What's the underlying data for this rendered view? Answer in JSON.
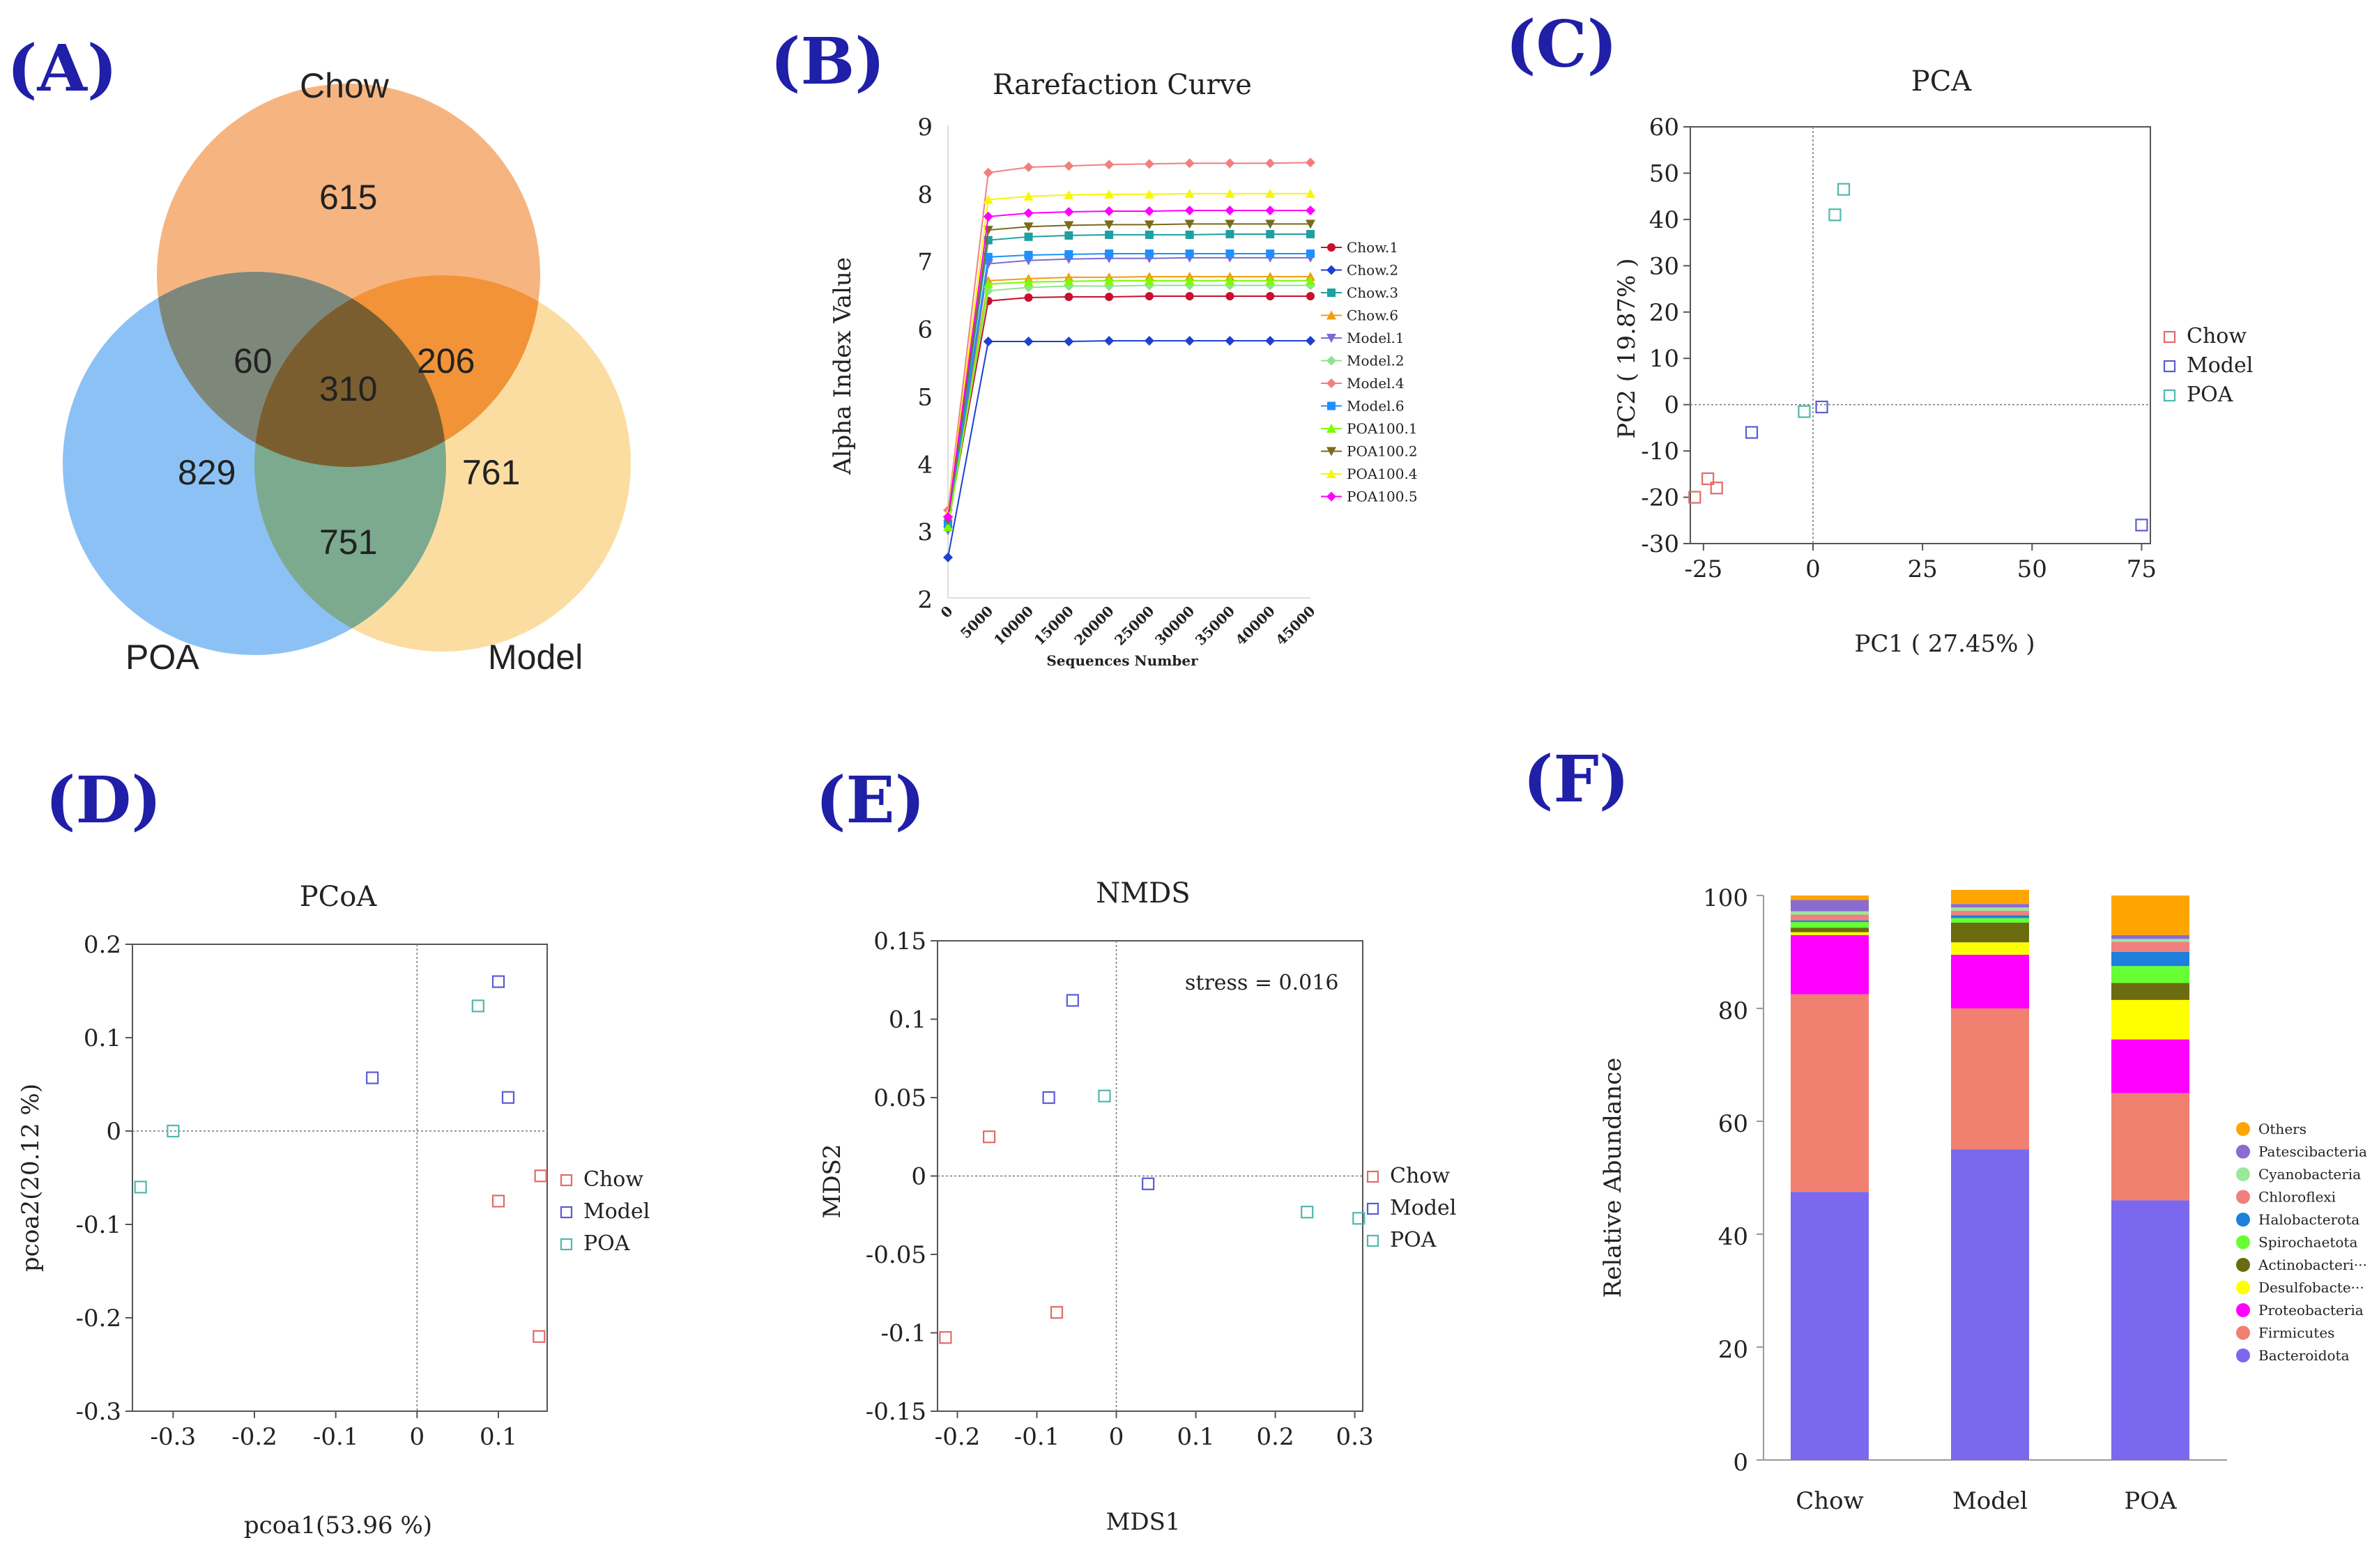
{
  "panels": {
    "A": "(A)",
    "B": "(B)",
    "C": "(C)",
    "D": "(D)",
    "E": "(E)",
    "F": "(F)"
  },
  "colors": {
    "chow": "#e36a6a",
    "model": "#5b5bd6",
    "poa": "#4fb9ad",
    "panel_label": "#1f1fa8"
  },
  "chart_data": [
    {
      "type": "venn",
      "sets": [
        "Chow",
        "POA",
        "Model"
      ],
      "set_colors": [
        "#f5a86a",
        "#6fb1f2",
        "#fbd282"
      ],
      "regions": {
        "chow_only": "615",
        "chow_poa": "60",
        "all": "310",
        "chow_model": "206",
        "poa_only": "829",
        "model_only": "761",
        "poa_model": "751"
      }
    },
    {
      "type": "line",
      "title": "Rarefaction Curve",
      "xlabel": "Sequences Number",
      "ylabel": "Alpha Index Value",
      "xlim": [
        0,
        45000
      ],
      "ylim": [
        2,
        9
      ],
      "xticks": [
        "0",
        "5000",
        "10000",
        "15000",
        "20000",
        "25000",
        "30000",
        "35000",
        "40000",
        "45000"
      ],
      "yticks": [
        "2",
        "3",
        "4",
        "5",
        "6",
        "7",
        "8",
        "9"
      ],
      "x": [
        0,
        5000,
        10000,
        15000,
        20000,
        25000,
        30000,
        35000,
        40000,
        45000
      ],
      "series": [
        {
          "name": "Chow.1",
          "color": "#c8102e",
          "marker": "circle",
          "values": [
            3.1,
            6.4,
            6.45,
            6.46,
            6.46,
            6.47,
            6.47,
            6.47,
            6.47,
            6.47
          ]
        },
        {
          "name": "Chow.2",
          "color": "#1f3fcf",
          "marker": "diamond",
          "values": [
            2.6,
            5.8,
            5.8,
            5.8,
            5.81,
            5.81,
            5.81,
            5.81,
            5.81,
            5.81
          ]
        },
        {
          "name": "Chow.3",
          "color": "#1f9fa0",
          "marker": "square",
          "values": [
            3.1,
            7.3,
            7.35,
            7.37,
            7.38,
            7.38,
            7.38,
            7.39,
            7.39,
            7.39
          ]
        },
        {
          "name": "Chow.6",
          "color": "#f39c12",
          "marker": "triangle",
          "values": [
            3.2,
            6.7,
            6.73,
            6.75,
            6.75,
            6.76,
            6.76,
            6.76,
            6.76,
            6.76
          ]
        },
        {
          "name": "Model.1",
          "color": "#7a6bd4",
          "marker": "triangle-down",
          "values": [
            3.0,
            6.95,
            7.0,
            7.02,
            7.03,
            7.03,
            7.04,
            7.04,
            7.04,
            7.04
          ]
        },
        {
          "name": "Model.2",
          "color": "#90e390",
          "marker": "diamond",
          "values": [
            3.1,
            6.55,
            6.6,
            6.62,
            6.62,
            6.63,
            6.63,
            6.63,
            6.63,
            6.63
          ]
        },
        {
          "name": "Model.4",
          "color": "#f08080",
          "marker": "diamond",
          "values": [
            3.3,
            8.3,
            8.38,
            8.4,
            8.42,
            8.43,
            8.44,
            8.44,
            8.44,
            8.45
          ]
        },
        {
          "name": "Model.6",
          "color": "#1e90ff",
          "marker": "square",
          "values": [
            3.1,
            7.05,
            7.08,
            7.09,
            7.1,
            7.1,
            7.1,
            7.1,
            7.1,
            7.1
          ]
        },
        {
          "name": "POA100.1",
          "color": "#7cfc00",
          "marker": "triangle",
          "values": [
            3.05,
            6.65,
            6.68,
            6.69,
            6.7,
            6.7,
            6.7,
            6.7,
            6.7,
            6.7
          ]
        },
        {
          "name": "POA100.2",
          "color": "#7a6a1a",
          "marker": "triangle-down",
          "values": [
            3.15,
            7.45,
            7.5,
            7.52,
            7.53,
            7.53,
            7.54,
            7.54,
            7.54,
            7.54
          ]
        },
        {
          "name": "POA100.4",
          "color": "#f7f700",
          "marker": "triangle",
          "values": [
            3.25,
            7.9,
            7.95,
            7.97,
            7.98,
            7.98,
            7.99,
            7.99,
            7.99,
            7.99
          ]
        },
        {
          "name": "POA100.5",
          "color": "#ff00ff",
          "marker": "diamond",
          "values": [
            3.2,
            7.65,
            7.7,
            7.72,
            7.73,
            7.73,
            7.74,
            7.74,
            7.74,
            7.74
          ]
        }
      ]
    },
    {
      "type": "scatter",
      "title": "PCA",
      "xlabel": "PC1 ( 27.45% )",
      "ylabel": "PC2 ( 19.87% )",
      "xlim": [
        -28,
        77
      ],
      "ylim": [
        -30,
        60
      ],
      "xticks": [
        "-25",
        "0",
        "25",
        "50",
        "75"
      ],
      "yticks": [
        "-30",
        "-20",
        "-10",
        "0",
        "10",
        "20",
        "30",
        "40",
        "50",
        "60"
      ],
      "legend": [
        "Chow",
        "Model",
        "POA"
      ],
      "series": [
        {
          "name": "Chow",
          "points": [
            [
              -27,
              -20
            ],
            [
              -24,
              -16
            ],
            [
              -22,
              -18
            ]
          ]
        },
        {
          "name": "Model",
          "points": [
            [
              -14,
              -6
            ],
            [
              2,
              -0.5
            ],
            [
              75,
              -26
            ]
          ]
        },
        {
          "name": "POA",
          "points": [
            [
              -2,
              -1.5
            ],
            [
              5,
              41
            ],
            [
              7,
              46.5
            ]
          ]
        }
      ]
    },
    {
      "type": "scatter",
      "title": "PCoA",
      "xlabel": "pcoa1(53.96 %)",
      "ylabel": "pcoa2(20.12 %)",
      "xlim": [
        -0.35,
        0.16
      ],
      "ylim": [
        -0.3,
        0.2
      ],
      "xticks": [
        "-0.3",
        "-0.2",
        "-0.1",
        "0",
        "0.1"
      ],
      "yticks": [
        "-0.3",
        "-0.2",
        "-0.1",
        "0",
        "0.1",
        "0.2"
      ],
      "legend": [
        "Chow",
        "Model",
        "POA"
      ],
      "series": [
        {
          "name": "Chow",
          "points": [
            [
              0.1,
              -0.075
            ],
            [
              0.152,
              -0.048
            ],
            [
              0.15,
              -0.22
            ]
          ]
        },
        {
          "name": "Model",
          "points": [
            [
              -0.055,
              0.057
            ],
            [
              0.1,
              0.16
            ],
            [
              0.112,
              0.036
            ]
          ]
        },
        {
          "name": "POA",
          "points": [
            [
              -0.34,
              -0.06
            ],
            [
              -0.3,
              0.0
            ],
            [
              0.075,
              0.134
            ]
          ]
        }
      ]
    },
    {
      "type": "scatter",
      "title": "NMDS",
      "xlabel": "MDS1",
      "ylabel": "MDS2",
      "annotation": "stress = 0.016",
      "xlim": [
        -0.225,
        0.31
      ],
      "ylim": [
        -0.15,
        0.15
      ],
      "xticks": [
        "-0.2",
        "-0.1",
        "0",
        "0.1",
        "0.2",
        "0.3"
      ],
      "yticks": [
        "-0.15",
        "-0.1",
        "-0.05",
        "0",
        "0.05",
        "0.1",
        "0.15"
      ],
      "legend": [
        "Chow",
        "Model",
        "POA"
      ],
      "series": [
        {
          "name": "Chow",
          "points": [
            [
              -0.16,
              0.025
            ],
            [
              -0.075,
              -0.087
            ],
            [
              -0.215,
              -0.103
            ]
          ]
        },
        {
          "name": "Model",
          "points": [
            [
              -0.055,
              0.112
            ],
            [
              -0.085,
              0.05
            ],
            [
              0.04,
              -0.005
            ]
          ]
        },
        {
          "name": "POA",
          "points": [
            [
              -0.015,
              0.051
            ],
            [
              0.24,
              -0.023
            ],
            [
              0.305,
              -0.027
            ]
          ]
        }
      ]
    },
    {
      "type": "bar",
      "stacked": true,
      "ylabel": "Relative Abundance",
      "ylim": [
        0,
        100
      ],
      "yticks": [
        "0",
        "20",
        "40",
        "60",
        "80",
        "100"
      ],
      "categories": [
        "Chow",
        "Model",
        "POA"
      ],
      "series": [
        {
          "name": "Bacteroidota",
          "color": "#7b68ee",
          "values": [
            47.5,
            55,
            46
          ]
        },
        {
          "name": "Firmicutes",
          "color": "#f08070",
          "values": [
            35,
            25,
            19
          ]
        },
        {
          "name": "Proteobacteria",
          "color": "#ff00ff",
          "values": [
            10.5,
            9.5,
            9.5
          ]
        },
        {
          "name": "Desulfobacte···",
          "color": "#ffff00",
          "values": [
            0.5,
            2.2,
            7
          ]
        },
        {
          "name": "Actinobacteri···",
          "color": "#6b6b10",
          "values": [
            0.8,
            3.5,
            3
          ]
        },
        {
          "name": "Spirochaetota",
          "color": "#66ff33",
          "values": [
            1,
            0.8,
            3
          ]
        },
        {
          "name": "Halobacterota",
          "color": "#1e7fdd",
          "values": [
            0.3,
            0.5,
            2.5
          ]
        },
        {
          "name": "Chloroflexi",
          "color": "#f08080",
          "values": [
            1,
            0.8,
            1.8
          ]
        },
        {
          "name": "Cyanobacteria",
          "color": "#9ae89a",
          "values": [
            0.6,
            0.6,
            0.5
          ]
        },
        {
          "name": "Patescibacteria",
          "color": "#8a6cd0",
          "values": [
            2,
            0.6,
            0.7
          ]
        },
        {
          "name": "Others",
          "color": "#ffa500",
          "values": [
            0.8,
            2.5,
            7
          ]
        }
      ],
      "legend_order": [
        "Others",
        "Patescibacteria",
        "Cyanobacteria",
        "Chloroflexi",
        "Halobacterota",
        "Spirochaetota",
        "Actinobacteri···",
        "Desulfobacte···",
        "Proteobacteria",
        "Firmicutes",
        "Bacteroidota"
      ]
    }
  ]
}
